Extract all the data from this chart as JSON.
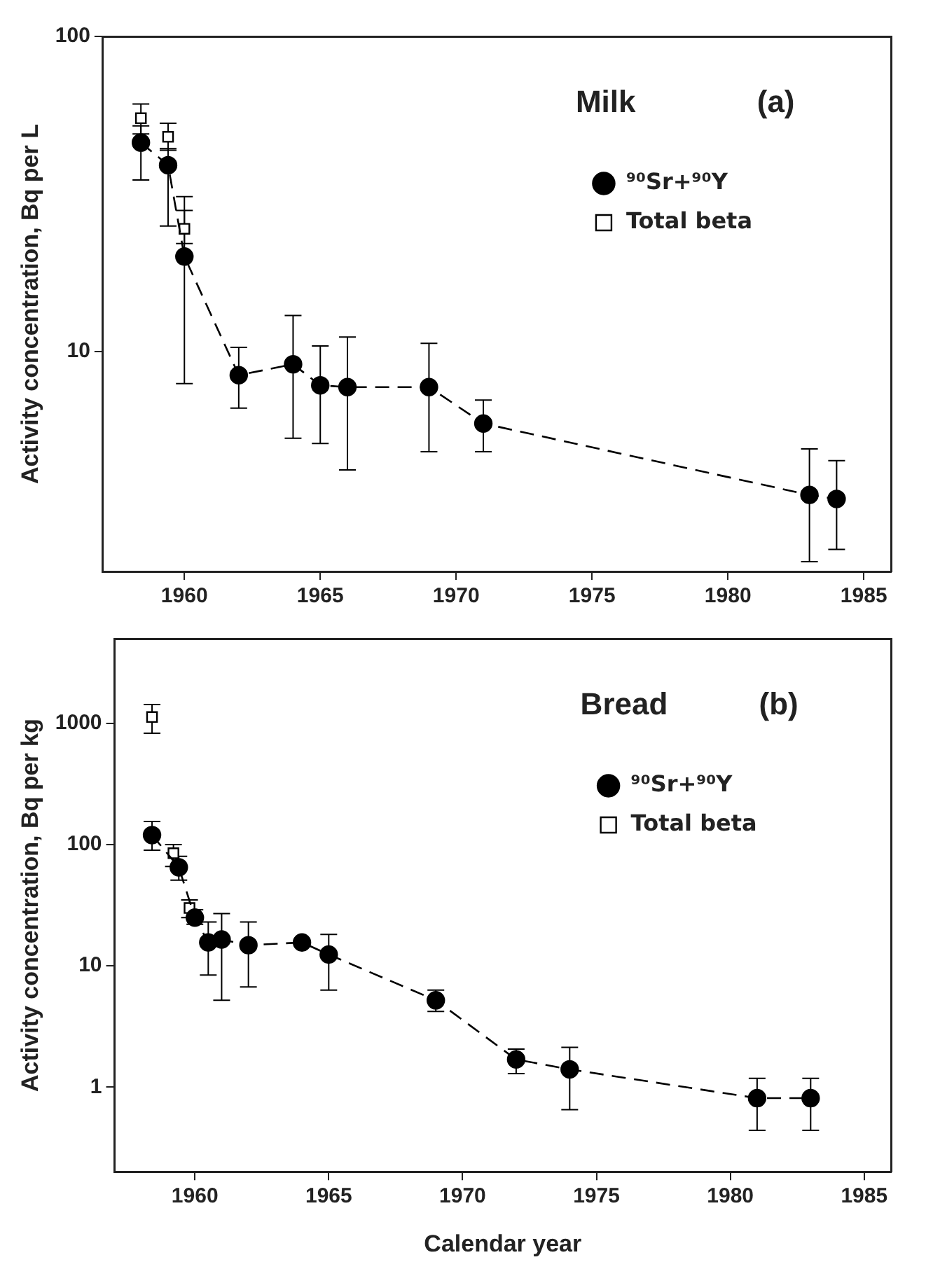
{
  "chart_data": [
    {
      "type": "line",
      "ylabel": "Activity concentration, Bq per L",
      "annotations": [
        "Milk",
        "(a)"
      ],
      "log": "y",
      "grid": false,
      "legend": "top right",
      "xlim": [
        1957,
        1986
      ],
      "xticks": [
        1960,
        1965,
        1970,
        1975,
        1980,
        1985
      ],
      "ylim": [
        2,
        100
      ],
      "yticks": [
        10,
        100
      ],
      "series": [
        {
          "name": "⁹⁰Sr+⁹⁰Y",
          "type": "line",
          "color": "#000000",
          "marker": "circle",
          "line_style": "dashed",
          "x": [
            1958.4,
            1959.4,
            1960,
            1962,
            1964,
            1965,
            1966,
            1969,
            1971,
            1983,
            1984
          ],
          "values": [
            46,
            39,
            20,
            8.4,
            9.1,
            7.8,
            7.7,
            7.7,
            5.9,
            3.5,
            3.4
          ],
          "errors": [
            [
              35,
              52
            ],
            [
              25,
              44
            ],
            [
              7.9,
              28
            ],
            [
              6.6,
              10.3
            ],
            [
              5.3,
              13
            ],
            [
              5.1,
              10.4
            ],
            [
              4.2,
              11.1
            ],
            [
              4.8,
              10.6
            ],
            [
              4.8,
              7.0
            ],
            [
              2.15,
              4.9
            ],
            [
              2.35,
              4.5
            ]
          ]
        },
        {
          "name": "Total beta",
          "type": "scatter",
          "color": "#000000",
          "marker": "square",
          "x": [
            1958.4,
            1959.4,
            1960
          ],
          "values": [
            55,
            48,
            24.5
          ],
          "errors": [
            [
              49,
              61
            ],
            [
              43.5,
              53
            ],
            [
              22,
              31
            ]
          ]
        }
      ]
    },
    {
      "type": "line",
      "xlabel": "Calendar year",
      "ylabel": "Activity concentration, Bq per kg",
      "annotations": [
        "Bread",
        "(b)"
      ],
      "log": "y",
      "grid": false,
      "legend": "top right",
      "xlim": [
        1957,
        1986
      ],
      "xticks": [
        1960,
        1965,
        1970,
        1975,
        1980,
        1985
      ],
      "ylim": [
        0.2,
        5000
      ],
      "yticks": [
        1,
        10,
        100,
        1000
      ],
      "series": [
        {
          "name": "⁹⁰Sr+⁹⁰Y",
          "type": "line",
          "color": "#000000",
          "marker": "circle",
          "line_style": "dashed",
          "x": [
            1958.4,
            1959.4,
            1960,
            1960.5,
            1961,
            1962,
            1964,
            1965,
            1969,
            1972,
            1974,
            1981,
            1983
          ],
          "values": [
            120,
            65,
            25,
            15.6,
            16.5,
            14.8,
            15.6,
            12.4,
            5.2,
            1.69,
            1.4,
            0.81,
            0.81
          ],
          "errors": [
            [
              90,
              155
            ],
            [
              51,
              80
            ],
            [
              22,
              29
            ],
            [
              8.4,
              23
            ],
            [
              5.2,
              27
            ],
            [
              6.7,
              23
            ],
            null,
            [
              6.3,
              18.2
            ],
            [
              4.2,
              6.3
            ],
            [
              1.29,
              2.06
            ],
            [
              0.65,
              2.13
            ],
            [
              0.44,
              1.18
            ],
            [
              0.44,
              1.18
            ]
          ]
        },
        {
          "name": "Total beta",
          "type": "scatter",
          "color": "#000000",
          "marker": "square",
          "x": [
            1958.4,
            1959.2,
            1959.8
          ],
          "values": [
            1130,
            85,
            30
          ],
          "errors": [
            [
              830,
              1430
            ],
            [
              66,
              100
            ],
            [
              25,
              35
            ]
          ]
        }
      ]
    }
  ]
}
